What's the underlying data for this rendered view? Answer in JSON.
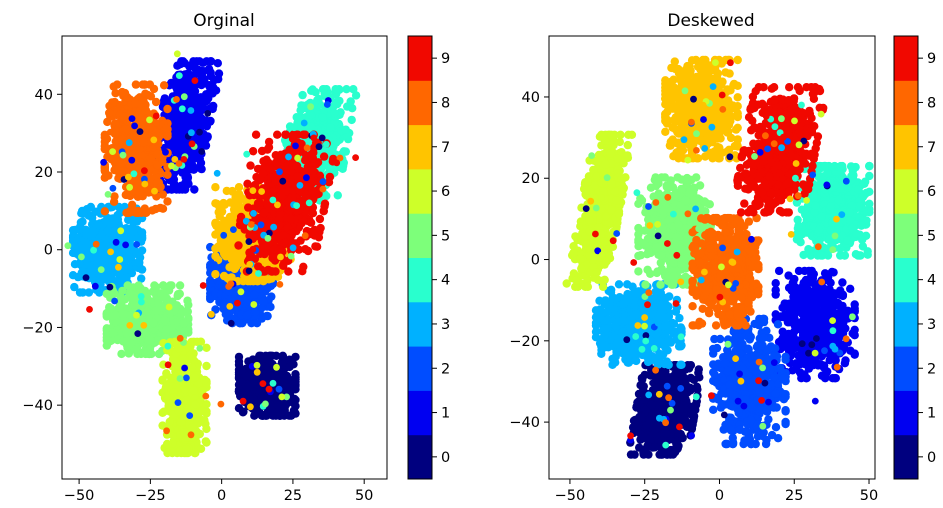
{
  "chart_data": [
    {
      "type": "scatter",
      "title": "Orginal",
      "xlabel": "",
      "ylabel": "",
      "xlim": [
        -56,
        58
      ],
      "ylim": [
        -59,
        55
      ],
      "xticks": [
        -50,
        -25,
        0,
        25,
        50
      ],
      "yticks": [
        -40,
        -20,
        0,
        20,
        40
      ],
      "grid": false,
      "colormap": "jet",
      "colorbar": {
        "ticks": [
          0,
          1,
          2,
          3,
          4,
          5,
          6,
          7,
          8,
          9
        ],
        "colors": [
          "#00007f",
          "#0000f1",
          "#004dff",
          "#00b1ff",
          "#29ffce",
          "#7dff7a",
          "#ceff29",
          "#ffc400",
          "#ff6700",
          "#f10800"
        ]
      },
      "clusters": [
        {
          "label": 0,
          "center": [
            16,
            -35
          ],
          "spread": [
            9,
            7
          ],
          "shape": "blob"
        },
        {
          "label": 1,
          "center": [
            -13,
            32
          ],
          "spread": [
            8,
            15
          ],
          "shape": "tilted"
        },
        {
          "label": 2,
          "center": [
            7,
            -9
          ],
          "spread": [
            10,
            9
          ],
          "shape": "blob"
        },
        {
          "label": 3,
          "center": [
            -40,
            0
          ],
          "spread": [
            11,
            10
          ],
          "shape": "blob"
        },
        {
          "label": 4,
          "center": [
            33,
            27
          ],
          "spread": [
            10,
            13
          ],
          "shape": "tilted"
        },
        {
          "label": 5,
          "center": [
            -26,
            -18
          ],
          "spread": [
            13,
            8
          ],
          "shape": "blob"
        },
        {
          "label": 6,
          "center": [
            -13,
            -38
          ],
          "spread": [
            7,
            13
          ],
          "shape": "blob"
        },
        {
          "label": 7,
          "center": [
            11,
            4
          ],
          "spread": [
            12,
            11
          ],
          "shape": "blob"
        },
        {
          "label": 8,
          "center": [
            -30,
            26
          ],
          "spread": [
            10,
            15
          ],
          "shape": "blob"
        },
        {
          "label": 9,
          "center": [
            22,
            12
          ],
          "spread": [
            13,
            16
          ],
          "shape": "tilted"
        }
      ]
    },
    {
      "type": "scatter",
      "title": "Deskewed",
      "xlabel": "",
      "ylabel": "",
      "xlim": [
        -57,
        52
      ],
      "ylim": [
        -54,
        55
      ],
      "xticks": [
        -50,
        -25,
        0,
        25,
        50
      ],
      "yticks": [
        -40,
        -20,
        0,
        20,
        40
      ],
      "grid": false,
      "colormap": "jet",
      "colorbar": {
        "ticks": [
          0,
          1,
          2,
          3,
          4,
          5,
          6,
          7,
          8,
          9
        ],
        "colors": [
          "#00007f",
          "#0000f1",
          "#004dff",
          "#00b1ff",
          "#29ffce",
          "#7dff7a",
          "#ceff29",
          "#ffc400",
          "#ff6700",
          "#f10800"
        ]
      },
      "clusters": [
        {
          "label": 0,
          "center": [
            -18,
            -37
          ],
          "spread": [
            9,
            10
          ],
          "shape": "tilted"
        },
        {
          "label": 1,
          "center": [
            32,
            -16
          ],
          "spread": [
            12,
            12
          ],
          "shape": "blob"
        },
        {
          "label": 2,
          "center": [
            10,
            -30
          ],
          "spread": [
            11,
            14
          ],
          "shape": "blob"
        },
        {
          "label": 3,
          "center": [
            -27,
            -16
          ],
          "spread": [
            13,
            9
          ],
          "shape": "blob"
        },
        {
          "label": 4,
          "center": [
            38,
            12
          ],
          "spread": [
            11,
            10
          ],
          "shape": "blob"
        },
        {
          "label": 5,
          "center": [
            -15,
            7
          ],
          "spread": [
            11,
            12
          ],
          "shape": "blob"
        },
        {
          "label": 6,
          "center": [
            -40,
            12
          ],
          "spread": [
            6,
            17
          ],
          "shape": "tilted"
        },
        {
          "label": 7,
          "center": [
            -6,
            37
          ],
          "spread": [
            11,
            11
          ],
          "shape": "blob"
        },
        {
          "label": 8,
          "center": [
            2,
            -3
          ],
          "spread": [
            10,
            12
          ],
          "shape": "blob"
        },
        {
          "label": 9,
          "center": [
            20,
            27
          ],
          "spread": [
            11,
            14
          ],
          "shape": "tilted"
        }
      ]
    }
  ]
}
